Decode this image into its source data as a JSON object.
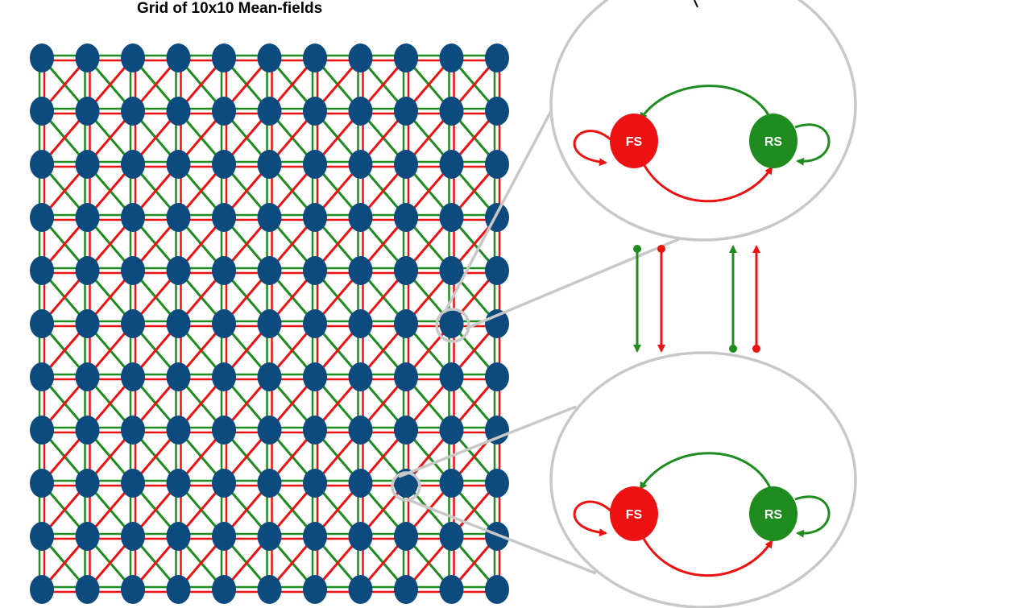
{
  "title": "Grid of 10x10 Mean-fields",
  "grid": {
    "rows": 11,
    "cols": 11
  },
  "colors": {
    "node": "#0d4a7d",
    "excitatory": "#1e8c1e",
    "inhibitory": "#ee1111",
    "zoom": "#c8c8c8"
  },
  "insets": [
    {
      "fs_label": "FS",
      "rs_label": "RS"
    },
    {
      "fs_label": "FS",
      "rs_label": "RS"
    }
  ]
}
